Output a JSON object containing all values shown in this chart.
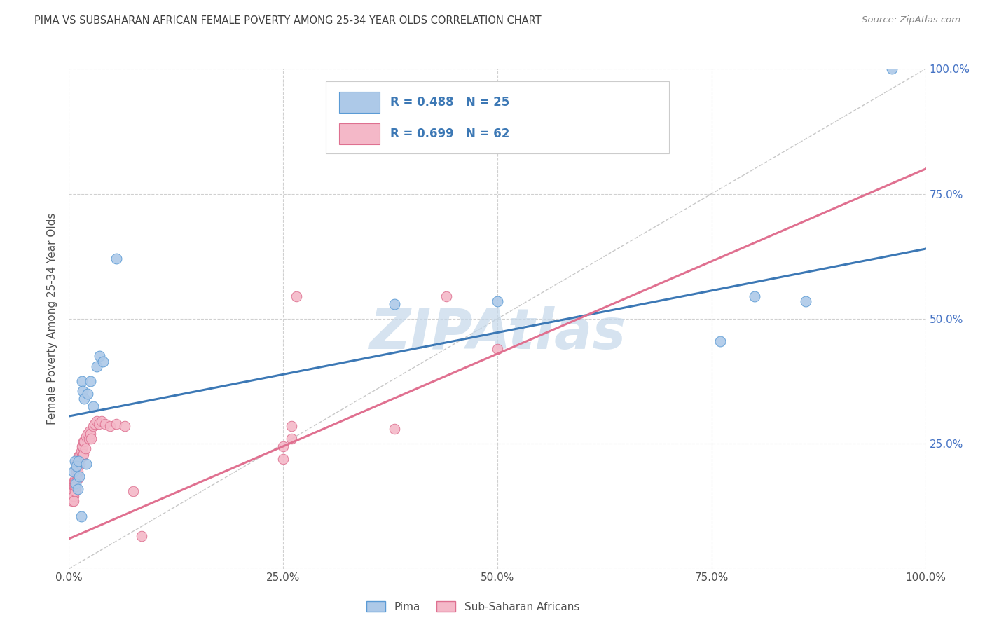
{
  "title": "PIMA VS SUBSAHARAN AFRICAN FEMALE POVERTY AMONG 25-34 YEAR OLDS CORRELATION CHART",
  "source": "Source: ZipAtlas.com",
  "ylabel": "Female Poverty Among 25-34 Year Olds",
  "xlim": [
    0,
    1
  ],
  "ylim": [
    0,
    1
  ],
  "xticks": [
    0,
    0.25,
    0.5,
    0.75,
    1.0
  ],
  "yticks": [
    0,
    0.25,
    0.5,
    0.75,
    1.0
  ],
  "xticklabels": [
    "0.0%",
    "25.0%",
    "50.0%",
    "75.0%",
    "100.0%"
  ],
  "right_ytick_labels": [
    "",
    "25.0%",
    "50.0%",
    "75.0%",
    "100.0%"
  ],
  "legend_r_blue": "R = 0.488",
  "legend_n_blue": "N = 25",
  "legend_r_pink": "R = 0.699",
  "legend_n_pink": "N = 62",
  "pima_label": "Pima",
  "ssa_label": "Sub-Saharan Africans",
  "pima_color": "#adc9e8",
  "pima_edge_color": "#5b9bd5",
  "ssa_color": "#f4b8c8",
  "ssa_edge_color": "#de7090",
  "blue_line_color": "#3c78b5",
  "pink_line_color": "#e07090",
  "diag_line_color": "#c8c8c8",
  "grid_color": "#d0d0d0",
  "title_color": "#404040",
  "watermark_color": "#c5d8ea",
  "right_ytick_color": "#4472c4",
  "pima_x": [
    0.005,
    0.007,
    0.008,
    0.009,
    0.01,
    0.011,
    0.012,
    0.014,
    0.015,
    0.016,
    0.018,
    0.02,
    0.022,
    0.025,
    0.028,
    0.032,
    0.036,
    0.04,
    0.055,
    0.38,
    0.5,
    0.76,
    0.8,
    0.86,
    0.96
  ],
  "pima_y": [
    0.195,
    0.215,
    0.17,
    0.205,
    0.16,
    0.215,
    0.185,
    0.105,
    0.375,
    0.355,
    0.34,
    0.21,
    0.35,
    0.375,
    0.325,
    0.405,
    0.425,
    0.415,
    0.62,
    0.53,
    0.535,
    0.455,
    0.545,
    0.535,
    1.0
  ],
  "ssa_x": [
    0.002,
    0.003,
    0.003,
    0.004,
    0.004,
    0.005,
    0.005,
    0.005,
    0.005,
    0.005,
    0.006,
    0.006,
    0.007,
    0.007,
    0.007,
    0.008,
    0.008,
    0.008,
    0.008,
    0.009,
    0.009,
    0.01,
    0.01,
    0.01,
    0.011,
    0.011,
    0.012,
    0.013,
    0.014,
    0.015,
    0.015,
    0.016,
    0.016,
    0.017,
    0.017,
    0.018,
    0.019,
    0.02,
    0.022,
    0.023,
    0.024,
    0.025,
    0.026,
    0.028,
    0.03,
    0.032,
    0.035,
    0.038,
    0.042,
    0.048,
    0.055,
    0.065,
    0.075,
    0.085,
    0.25,
    0.25,
    0.26,
    0.26,
    0.265,
    0.38,
    0.44,
    0.5
  ],
  "ssa_y": [
    0.165,
    0.155,
    0.145,
    0.145,
    0.135,
    0.175,
    0.165,
    0.155,
    0.145,
    0.135,
    0.175,
    0.165,
    0.175,
    0.165,
    0.155,
    0.2,
    0.185,
    0.175,
    0.165,
    0.21,
    0.195,
    0.21,
    0.195,
    0.18,
    0.225,
    0.21,
    0.225,
    0.21,
    0.235,
    0.245,
    0.225,
    0.245,
    0.225,
    0.255,
    0.23,
    0.255,
    0.24,
    0.265,
    0.27,
    0.26,
    0.275,
    0.27,
    0.26,
    0.285,
    0.29,
    0.295,
    0.29,
    0.295,
    0.29,
    0.285,
    0.29,
    0.285,
    0.155,
    0.065,
    0.245,
    0.22,
    0.285,
    0.26,
    0.545,
    0.28,
    0.545,
    0.44
  ],
  "blue_trendline_x": [
    0.0,
    1.0
  ],
  "blue_trendline_y": [
    0.305,
    0.64
  ],
  "pink_trendline_x": [
    0.0,
    1.0
  ],
  "pink_trendline_y": [
    0.06,
    0.8
  ]
}
